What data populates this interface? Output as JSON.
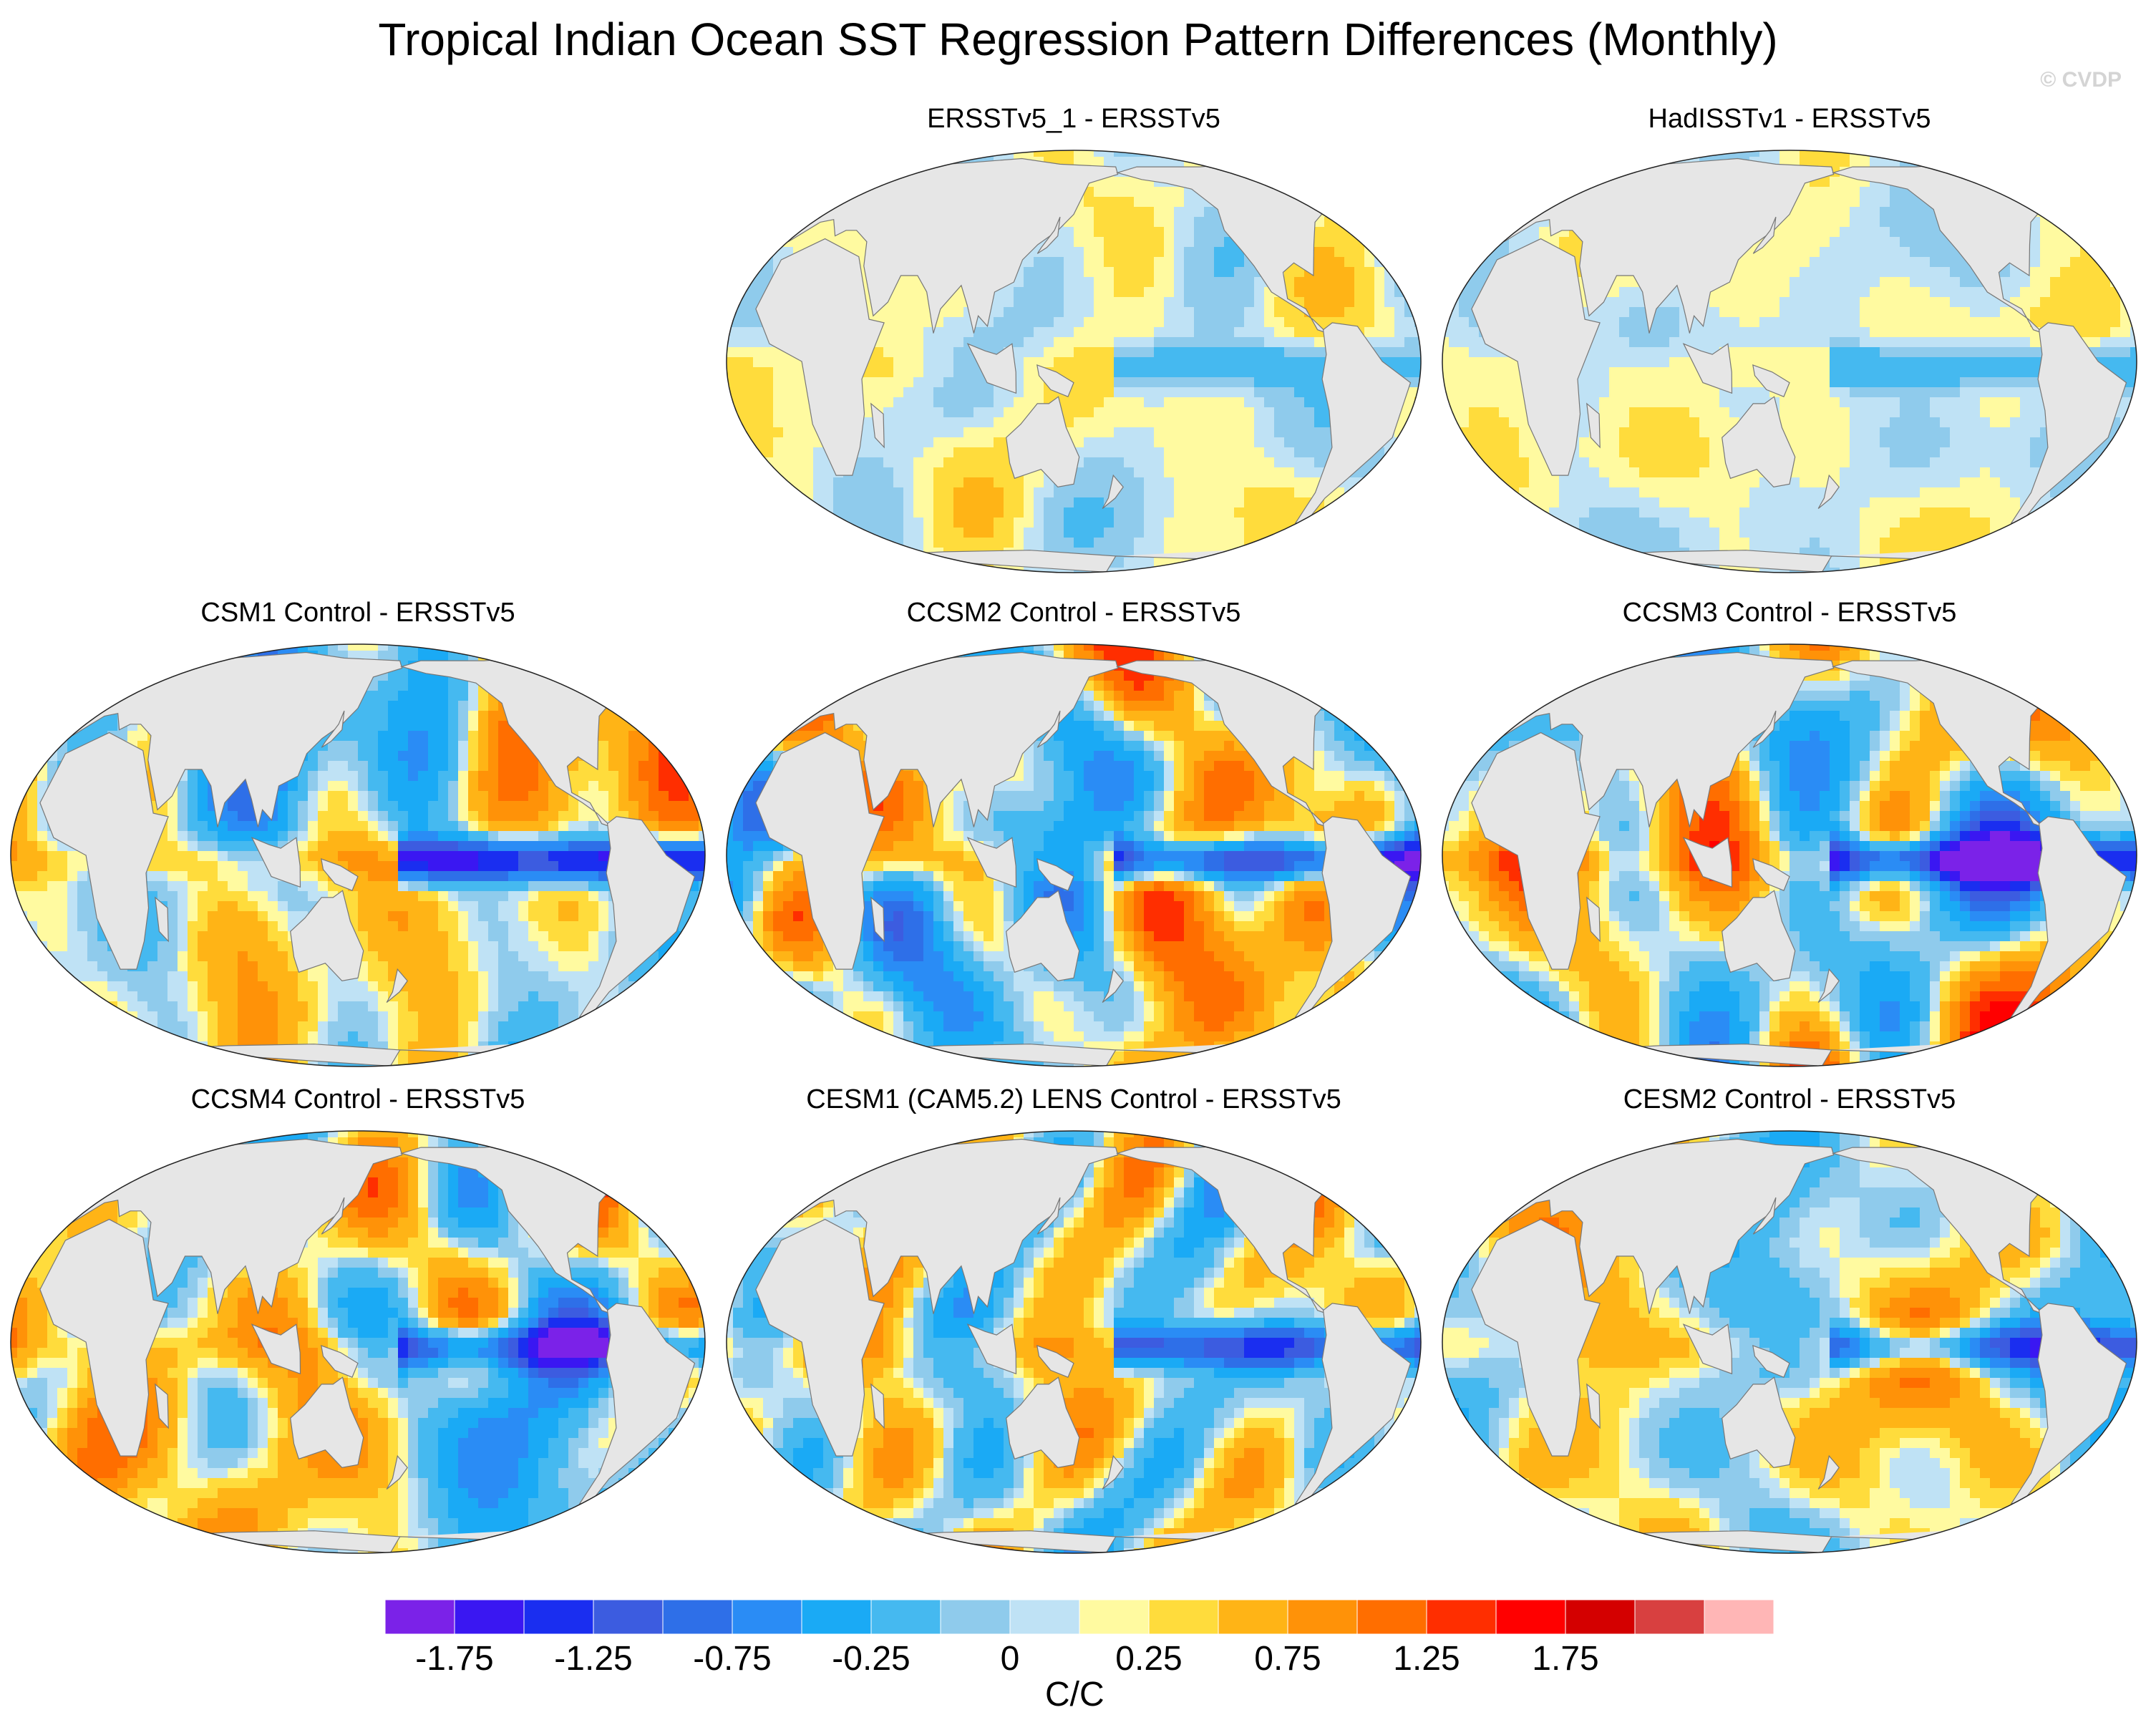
{
  "page": {
    "title": "Tropical Indian Ocean SST Regression Pattern Differences (Monthly)",
    "watermark": "© CVDP"
  },
  "chart_data": {
    "type": "map-panels",
    "projection": "Robinson-like global map (centered ~150°E)",
    "units": "C/C",
    "colorbar": {
      "label": "C/C",
      "tick_labels": [
        "-1.75",
        "-1.25",
        "-0.75",
        "-0.25",
        "0",
        "0.25",
        "0.75",
        "1.25",
        "1.75"
      ],
      "levels": [
        -2.0,
        -1.75,
        -1.5,
        -1.25,
        -1.0,
        -0.75,
        -0.5,
        -0.25,
        -0.1,
        0,
        0.1,
        0.25,
        0.5,
        0.75,
        1.0,
        1.25,
        1.5,
        1.75,
        2.0
      ],
      "colors": [
        "#7b22e8",
        "#3a17f2",
        "#1a2ef0",
        "#3c5ce0",
        "#2e6fe8",
        "#2a8cf5",
        "#1aaaf5",
        "#45b9f0",
        "#8fcbec",
        "#bfe2f5",
        "#fffaa0",
        "#ffdc3c",
        "#ffb416",
        "#ff9208",
        "#ff6e00",
        "#ff2e00",
        "#ff0000",
        "#d40000",
        "#d84040",
        "#ffb6b6"
      ]
    },
    "land_color": "#e6e6e6",
    "panels": [
      {
        "id": "ersstv5_1",
        "title": "ERSSTv5_1 - ERSSTv5",
        "amplitude": 0.35,
        "seed": 3
      },
      {
        "id": "hadisstv1",
        "title": "HadISSTv1 - ERSSTv5",
        "amplitude": 0.4,
        "seed": 7
      },
      {
        "id": "csm1",
        "title": "CSM1 Control - ERSSTv5",
        "amplitude": 1.6,
        "seed": 11
      },
      {
        "id": "ccsm2",
        "title": "CCSM2 Control - ERSSTv5",
        "amplitude": 1.4,
        "seed": 13
      },
      {
        "id": "ccsm3",
        "title": "CCSM3 Control - ERSSTv5",
        "amplitude": 1.4,
        "seed": 17
      },
      {
        "id": "ccsm4",
        "title": "CCSM4 Control - ERSSTv5",
        "amplitude": 1.1,
        "seed": 19
      },
      {
        "id": "cesm1",
        "title": "CESM1 (CAM5.2) LENS Control - ERSSTv5",
        "amplitude": 1.1,
        "seed": 23
      },
      {
        "id": "cesm2",
        "title": "CESM2 Control - ERSSTv5",
        "amplitude": 1.0,
        "seed": 29
      }
    ]
  }
}
